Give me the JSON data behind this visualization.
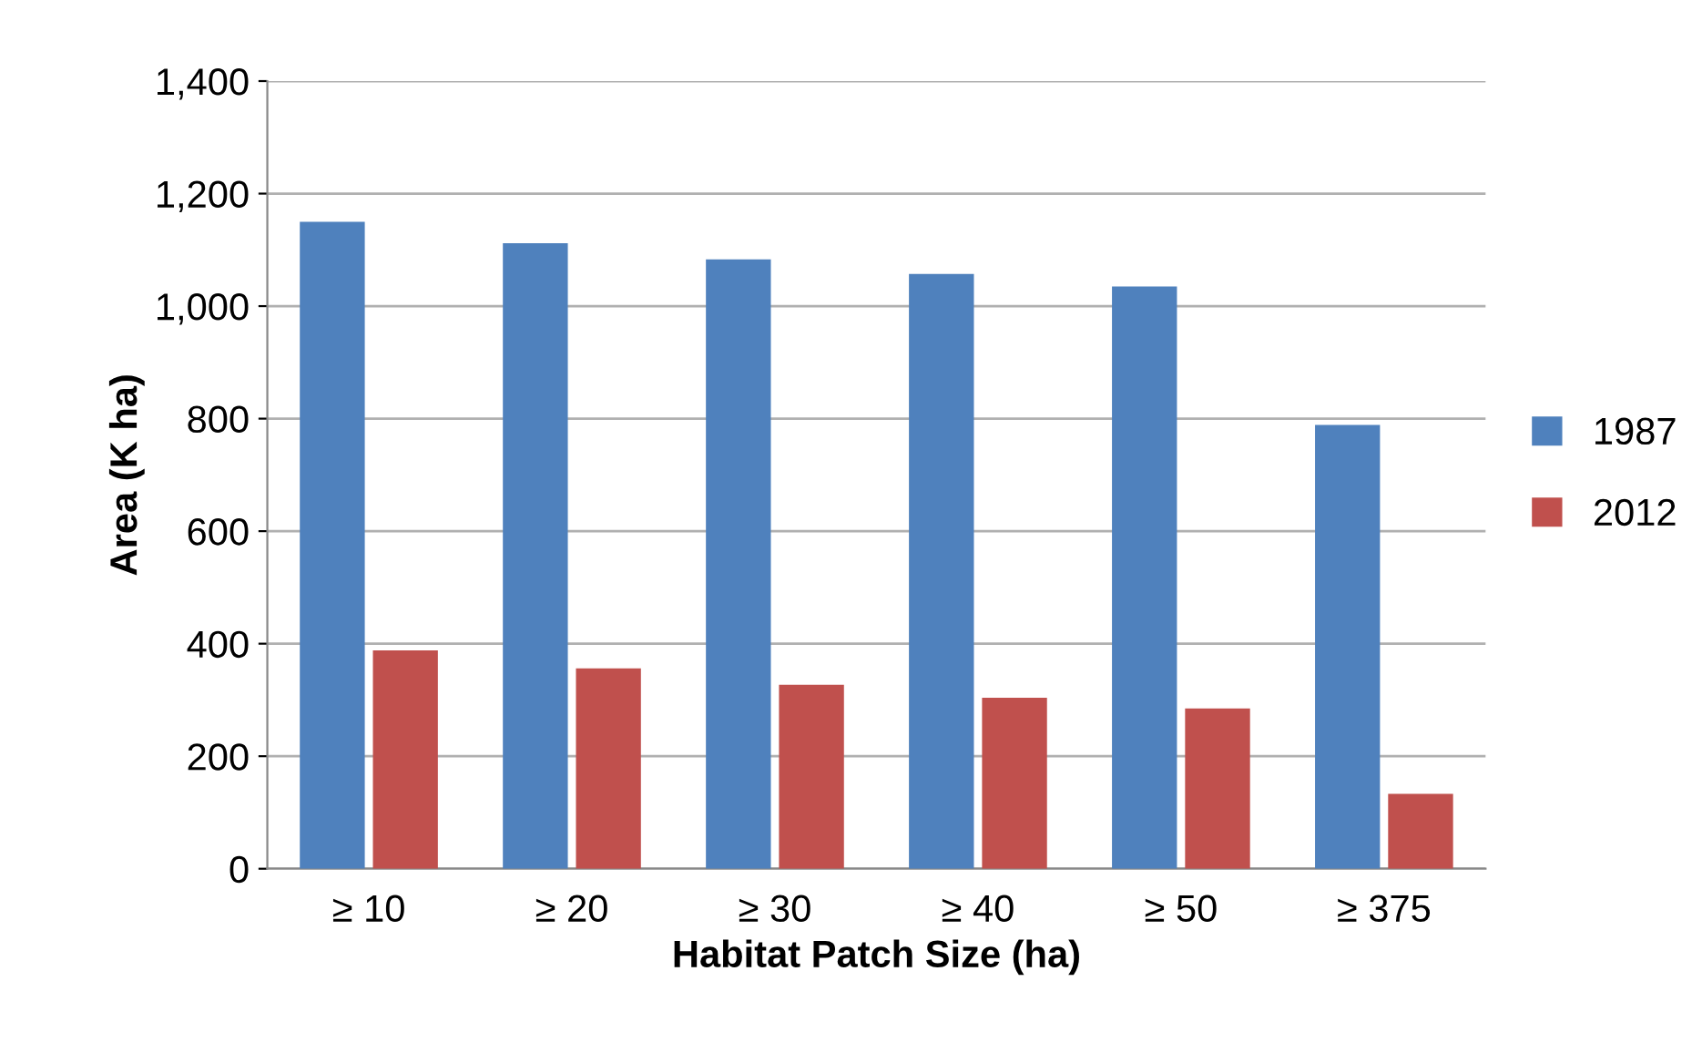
{
  "chart_data": {
    "type": "bar",
    "xlabel": "Habitat Patch Size (ha)",
    "ylabel": "Area (K ha)",
    "categories": [
      "≥ 10",
      "≥ 20",
      "≥ 30",
      "≥ 40",
      "≥ 50",
      "≥ 375"
    ],
    "series": [
      {
        "name": "1987",
        "color": "#4f81bd",
        "values": [
          1150,
          1112,
          1083,
          1057,
          1035,
          789
        ]
      },
      {
        "name": "2012",
        "color": "#c0504d",
        "values": [
          388,
          356,
          327,
          304,
          285,
          133
        ]
      }
    ],
    "ylim": [
      0,
      1400
    ],
    "yticks": [
      0,
      {
        "value": 200,
        "label": "200"
      },
      {
        "value": 400,
        "label": "400"
      },
      {
        "value": 600,
        "label": "600"
      },
      {
        "value": 800,
        "label": "800"
      },
      {
        "value": 1000,
        "label": "1,000"
      },
      {
        "value": 1200,
        "label": "1,200"
      },
      {
        "value": 1400,
        "label": "1,400"
      }
    ],
    "grid": "y",
    "legend": "right"
  }
}
